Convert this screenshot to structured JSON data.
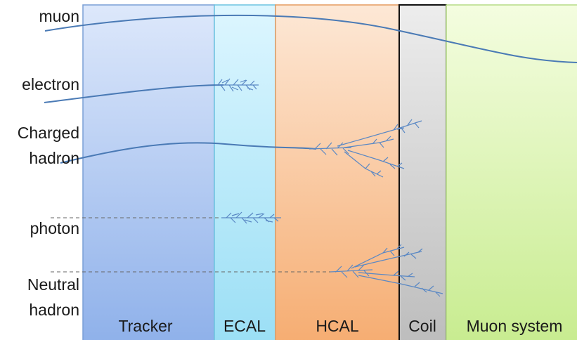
{
  "particles": [
    {
      "key": "muon",
      "lines": [
        "muon"
      ]
    },
    {
      "key": "electron",
      "lines": [
        "electron"
      ]
    },
    {
      "key": "charged_hadron",
      "lines": [
        "Charged",
        "hadron"
      ]
    },
    {
      "key": "photon",
      "lines": [
        "photon"
      ]
    },
    {
      "key": "neutral_hadron",
      "lines": [
        "Neutral",
        "hadron"
      ]
    }
  ],
  "layers": [
    {
      "key": "tracker",
      "label": "Tracker"
    },
    {
      "key": "ecal",
      "label": "ECAL"
    },
    {
      "key": "hcal",
      "label": "HCAL"
    },
    {
      "key": "coil",
      "label": "Coil"
    },
    {
      "key": "muon_system",
      "label": "Muon system"
    }
  ],
  "colors": {
    "track": "#4a7ab5",
    "shower": "#5a88c4",
    "neutral_track": "#666666",
    "tracker_top": "#dde8fb",
    "tracker_bottom": "#8fb1ea",
    "ecal_top": "#ddf6ff",
    "ecal_bottom": "#9bdff5",
    "hcal_top": "#fde8d6",
    "hcal_bottom": "#f6ad72",
    "coil_top": "#ededed",
    "coil_bottom": "#bdbdbd",
    "muon_top": "#f4fde0",
    "muon_bottom": "#c8ec90"
  }
}
